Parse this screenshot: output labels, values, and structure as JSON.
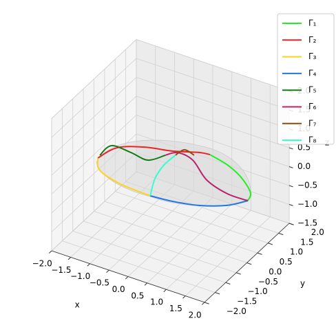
{
  "chart_data": {
    "type": "line3d",
    "xlabel": "x",
    "ylabel": "y",
    "zlabel": "z",
    "xlim": [
      -2,
      2
    ],
    "ylim": [
      -2,
      2
    ],
    "zlim": [
      -1.5,
      2
    ],
    "xticks": [
      {
        "value": -2,
        "label": "−2.0"
      },
      {
        "value": -1.5,
        "label": "−1.5"
      },
      {
        "value": -1,
        "label": "−1.0"
      },
      {
        "value": -0.5,
        "label": "−0.5"
      },
      {
        "value": 0,
        "label": "0.0"
      },
      0.5,
      {
        "value": 1,
        "label": "1.0"
      },
      1.5,
      {
        "value": 2,
        "label": "2.0"
      }
    ],
    "yticks": [
      {
        "value": -2,
        "label": "−2.0"
      },
      {
        "value": -1.5,
        "label": "−1.5"
      },
      {
        "value": -1,
        "label": "−1.0"
      },
      {
        "value": -0.5,
        "label": "−0.5"
      },
      {
        "value": 0,
        "label": "0.0"
      },
      0.5,
      {
        "value": 1,
        "label": "1.0"
      },
      1.5,
      {
        "value": 2,
        "label": "2.0"
      }
    ],
    "zticks": [
      {
        "value": -1.5,
        "label": "−1.5"
      },
      {
        "value": -1,
        "label": "−1.0"
      },
      {
        "value": -0.5,
        "label": "−0.5"
      },
      {
        "value": 0,
        "label": "0.0"
      },
      0.5,
      {
        "value": 1,
        "label": "1.0"
      },
      1.5,
      {
        "value": 2,
        "label": "2.0"
      }
    ],
    "grid": true,
    "legend": "upper right",
    "series": [
      {
        "name": "Γ₁",
        "color": "#22ee22",
        "x": [
          1.13,
          1.24,
          1.14,
          0.93,
          0.62
        ],
        "y": [
          1.62,
          1.54,
          1.28,
          1.01,
          0.75
        ],
        "z": [
          -1,
          -0.7,
          -0.2,
          0.2,
          0.5
        ]
      },
      {
        "name": "Γ₂",
        "color": "#ee2222",
        "x": [
          -1.7,
          -1.31,
          -0.79,
          -0.18,
          0.38,
          0.62
        ],
        "y": [
          -0.36,
          -0.16,
          0.21,
          0.41,
          0.7,
          0.75
        ],
        "z": [
          0.2,
          0.5,
          0.5,
          0.5,
          0.5,
          0.5
        ]
      },
      {
        "name": "Γ₃",
        "color": "#ffd21f",
        "x": [
          -0.85,
          -1.35,
          -1.72,
          -1.7
        ],
        "y": [
          0.58,
          0.08,
          -0.23,
          -0.36
        ],
        "z": [
          -1,
          -0.6,
          -0.2,
          0.2
        ]
      },
      {
        "name": "Γ₄",
        "color": "#1f77e4",
        "x": [
          -0.85,
          -0.31,
          0.3,
          0.83,
          1.13
        ],
        "y": [
          0.58,
          0.65,
          0.84,
          1.19,
          1.62
        ],
        "z": [
          -1,
          -1,
          -1,
          -1,
          -1
        ]
      },
      {
        "name": "Γ₅",
        "color": "#157a15",
        "x": [
          -1.68,
          -1.42,
          -1.14,
          -0.85,
          -0.46
        ],
        "y": [
          -0.3,
          -0.22,
          0.19,
          0.47,
          0.59
        ],
        "z": [
          0.25,
          0.55,
          0.25,
          0,
          0.2
        ]
      },
      {
        "name": "Γ₆",
        "color": "#b8246a",
        "x": [
          -0.46,
          -0.12,
          0.17,
          0.38,
          0.75,
          1.13
        ],
        "y": [
          0.59,
          0.56,
          0.75,
          1.03,
          1.34,
          1.62
        ],
        "z": [
          0.2,
          0.4,
          0.2,
          -0.4,
          -0.8,
          -1
        ]
      },
      {
        "name": "Γ₇",
        "color": "#8b4a0b",
        "x": [
          -0.11,
          0.07,
          0.25
        ],
        "y": [
          0.44,
          0.54,
          0.67
        ],
        "z": [
          0.4,
          0.55,
          0.4
        ]
      },
      {
        "name": "Γ₈",
        "color": "#33ffcc",
        "x": [
          -0.85,
          -0.72,
          -0.44,
          -0.11
        ],
        "y": [
          0.58,
          0.57,
          0.49,
          0.44
        ],
        "z": [
          -1,
          -0.5,
          0,
          0.4
        ]
      }
    ]
  }
}
